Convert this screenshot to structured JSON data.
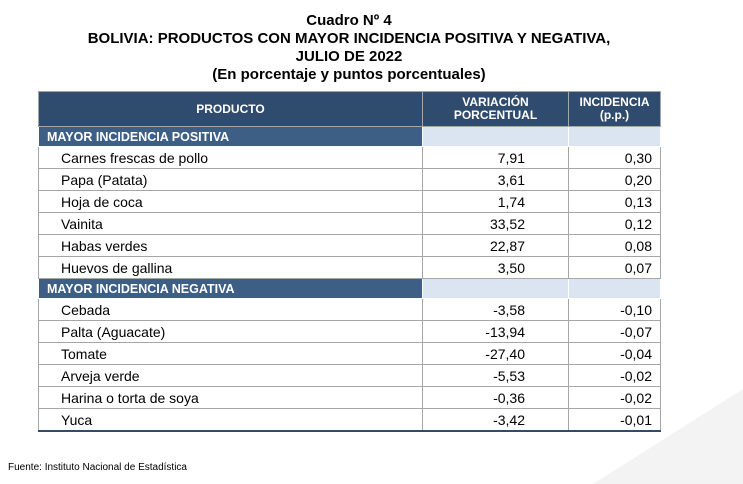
{
  "header": {
    "number": "Cuadro Nº 4",
    "title": "BOLIVIA: PRODUCTOS CON MAYOR INCIDENCIA POSITIVA Y NEGATIVA,",
    "period": "JULIO DE 2022",
    "units": "(En porcentaje y puntos porcentuales)"
  },
  "columns": {
    "product": "PRODUCTO",
    "variation_line1": "VARIACIÓN",
    "variation_line2": "PORCENTUAL",
    "incidence_line1": "INCIDENCIA",
    "incidence_line2": "(p.p.)"
  },
  "sections": [
    {
      "label": "MAYOR INCIDENCIA POSITIVA",
      "rows": [
        {
          "product": "Carnes frescas de pollo",
          "variation": "7,91",
          "incidence": "0,30"
        },
        {
          "product": "Papa (Patata)",
          "variation": "3,61",
          "incidence": "0,20"
        },
        {
          "product": "Hoja de coca",
          "variation": "1,74",
          "incidence": "0,13"
        },
        {
          "product": "Vainita",
          "variation": "33,52",
          "incidence": "0,12"
        },
        {
          "product": "Habas verdes",
          "variation": "22,87",
          "incidence": "0,08"
        },
        {
          "product": "Huevos de gallina",
          "variation": "3,50",
          "incidence": "0,07"
        }
      ]
    },
    {
      "label": "MAYOR INCIDENCIA NEGATIVA",
      "rows": [
        {
          "product": "Cebada",
          "variation": "-3,58",
          "incidence": "-0,10"
        },
        {
          "product": "Palta (Aguacate)",
          "variation": "-13,94",
          "incidence": "-0,07"
        },
        {
          "product": "Tomate",
          "variation": "-27,40",
          "incidence": "-0,04"
        },
        {
          "product": "Arveja verde",
          "variation": "-5,53",
          "incidence": "-0,02"
        },
        {
          "product": "Harina o torta de soya",
          "variation": "-0,36",
          "incidence": "-0,02"
        },
        {
          "product": "Yuca",
          "variation": "-3,42",
          "incidence": "-0,01"
        }
      ]
    }
  ],
  "footer": {
    "source": "Fuente: Instituto Nacional de Estadística"
  }
}
